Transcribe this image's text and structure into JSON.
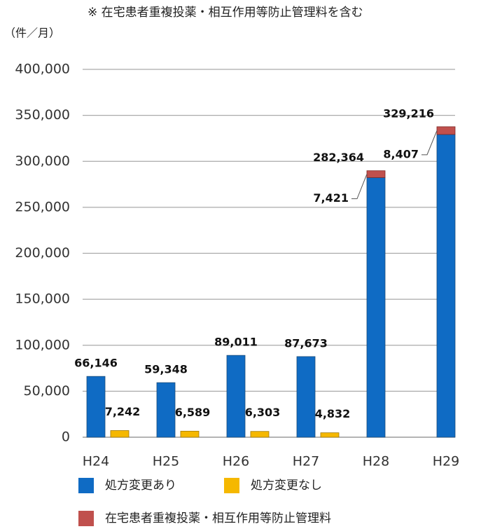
{
  "chart_data": {
    "type": "bar",
    "subtitle": "※ 在宅患者重複投薬・相互作用等防止管理料を含む",
    "y_axis_label": "（件／月）",
    "categories": [
      "H24",
      "H25",
      "H26",
      "H27",
      "H28",
      "H29"
    ],
    "series": [
      {
        "name": "処方変更あり",
        "color": "#0f6bc4",
        "values": [
          66146,
          59348,
          89011,
          87673,
          282364,
          329216
        ],
        "value_labels": [
          "66,146",
          "59,348",
          "89,011",
          "87,673",
          "282,364",
          "329,216"
        ]
      },
      {
        "name": "処方変更なし",
        "color": "#f5b800",
        "values": [
          7242,
          6589,
          6303,
          4832,
          null,
          null
        ],
        "value_labels": [
          "7,242",
          "6,589",
          "6,303",
          "4,832",
          null,
          null
        ]
      },
      {
        "name": "在宅患者重複投薬・相互作用等防止管理料",
        "color": "#c0504d",
        "values": [
          null,
          null,
          null,
          null,
          7421,
          8407
        ],
        "value_labels": [
          null,
          null,
          null,
          null,
          "7,421",
          "8,407"
        ]
      }
    ],
    "ylim": [
      0,
      400000
    ],
    "yticks": [
      0,
      {
        "value": 50000,
        "label": "50,000"
      },
      {
        "value": 100000,
        "label": "100,000"
      },
      {
        "value": 150000,
        "label": "150,000"
      },
      {
        "value": 200000,
        "label": "200,000"
      },
      {
        "value": 250000,
        "label": "250,000"
      },
      {
        "value": 300000,
        "label": "300,000"
      },
      {
        "value": 350000,
        "label": "350,000"
      },
      {
        "value": 400000,
        "label": "400,000"
      }
    ],
    "grid": true
  }
}
